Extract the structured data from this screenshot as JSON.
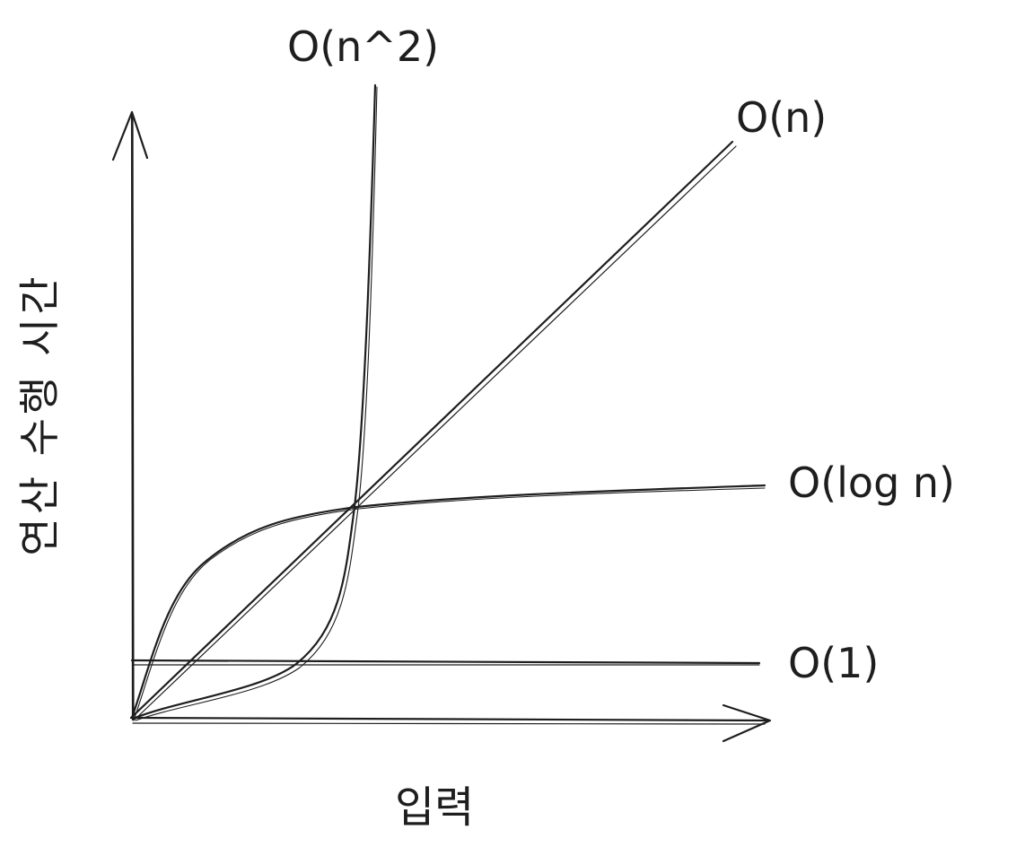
{
  "diagram": {
    "x_axis_label": "입력",
    "y_axis_label": "연산 수행 시간",
    "curves": [
      {
        "id": "quadratic",
        "label": "O(n^2)"
      },
      {
        "id": "linear",
        "label": "O(n)"
      },
      {
        "id": "logarithmic",
        "label": "O(log n)"
      },
      {
        "id": "constant",
        "label": "O(1)"
      }
    ],
    "stroke_color": "#1e1e1e",
    "background": "#ffffff"
  }
}
